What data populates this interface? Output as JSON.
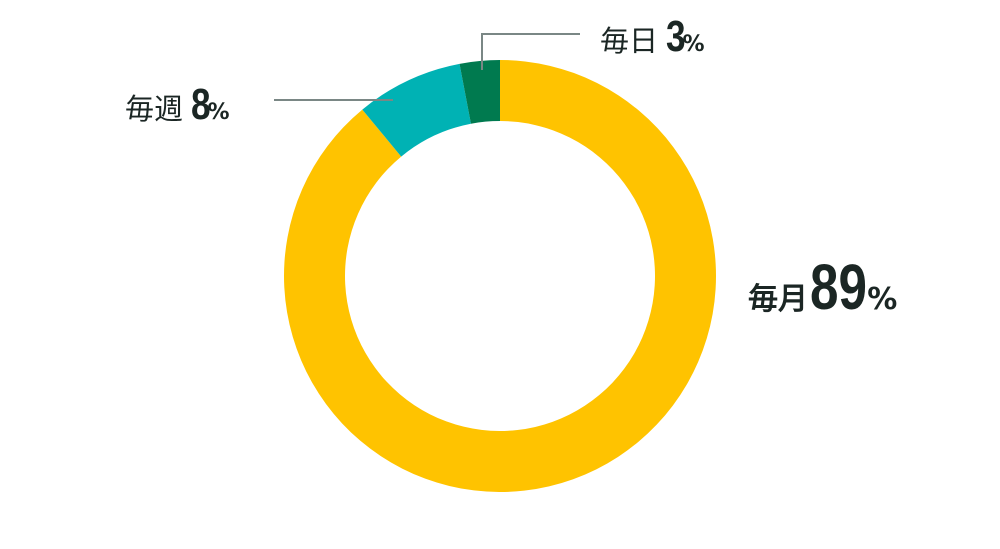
{
  "chart_data": {
    "type": "pie",
    "donut": true,
    "start": "top, clockwise",
    "slices": [
      {
        "label": "毎月",
        "value": 89,
        "color": "#FFC300"
      },
      {
        "label": "毎週",
        "value": 8,
        "color": "#00B2B4"
      },
      {
        "label": "毎日",
        "value": 3,
        "color": "#007A4F"
      }
    ],
    "unit": "%",
    "leader_line_color": "#7A8785"
  }
}
